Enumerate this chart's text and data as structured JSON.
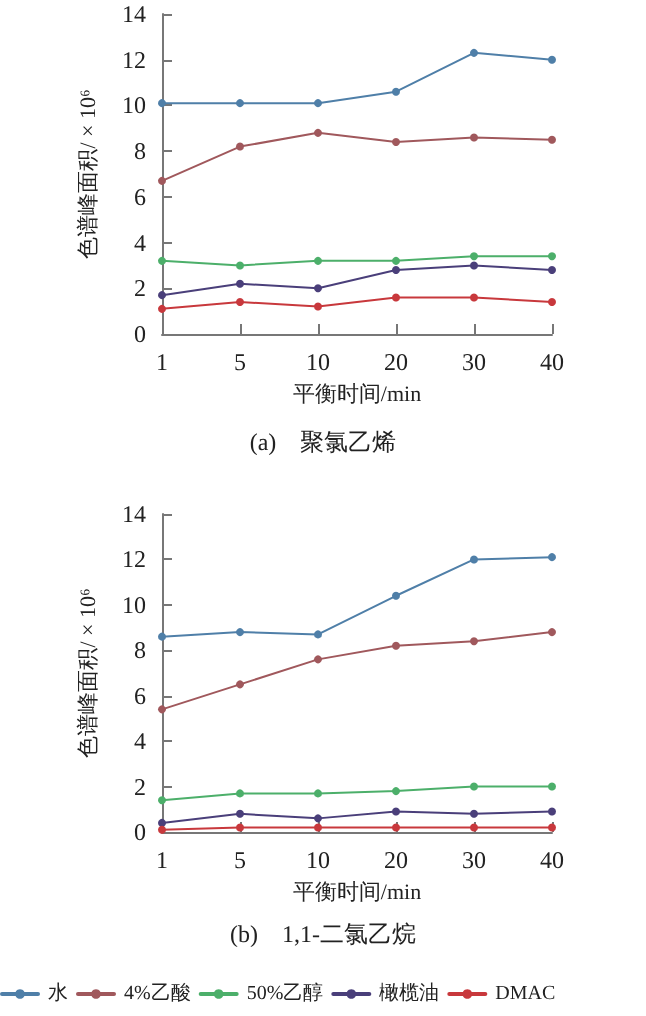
{
  "chart_data": [
    {
      "type": "line",
      "title": "(a)　聚氯乙烯",
      "xlabel": "平衡时间/min",
      "ylabel": "色谱峰面积/ × 10⁶",
      "categories": [
        "1",
        "5",
        "10",
        "20",
        "30",
        "40"
      ],
      "ylim": [
        0,
        14
      ],
      "yticks": [
        0,
        2,
        4,
        6,
        8,
        10,
        12,
        14
      ],
      "grid": false,
      "marker": "circle",
      "legend": false,
      "series": [
        {
          "color": "#4f7fa8",
          "values": [
            10.1,
            10.1,
            10.1,
            10.6,
            12.3,
            12.0
          ]
        },
        {
          "color": "#a0585c",
          "values": [
            6.7,
            8.2,
            8.8,
            8.4,
            8.6,
            8.5
          ]
        },
        {
          "color": "#4caf6a",
          "values": [
            3.2,
            3.0,
            3.2,
            3.2,
            3.4,
            3.4
          ]
        },
        {
          "color": "#4a3f7a",
          "values": [
            1.7,
            2.2,
            2.0,
            2.8,
            3.0,
            2.8
          ]
        },
        {
          "color": "#c8383c",
          "values": [
            1.1,
            1.4,
            1.2,
            1.6,
            1.6,
            1.4
          ]
        }
      ]
    },
    {
      "type": "line",
      "title": "(b)　1,1-二氯乙烷",
      "xlabel": "平衡时间/min",
      "ylabel": "色谱峰面积/ × 10⁶",
      "categories": [
        "1",
        "5",
        "10",
        "20",
        "30",
        "40"
      ],
      "ylim": [
        0,
        14
      ],
      "yticks": [
        0,
        2,
        4,
        6,
        8,
        10,
        12,
        14
      ],
      "grid": false,
      "marker": "circle",
      "legend": "bottom",
      "series": [
        {
          "name": "水",
          "color": "#4f7fa8",
          "values": [
            8.6,
            8.8,
            8.7,
            10.4,
            12.0,
            12.1
          ]
        },
        {
          "name": "4%乙酸",
          "color": "#a0585c",
          "values": [
            5.4,
            6.5,
            7.6,
            8.2,
            8.4,
            8.8
          ]
        },
        {
          "name": "50%乙醇",
          "color": "#4caf6a",
          "values": [
            1.4,
            1.7,
            1.7,
            1.8,
            2.0,
            2.0
          ]
        },
        {
          "name": "橄榄油",
          "color": "#4a3f7a",
          "values": [
            0.4,
            0.8,
            0.6,
            0.9,
            0.8,
            0.9
          ]
        },
        {
          "name": "DMAC",
          "color": "#c8383c",
          "values": [
            0.1,
            0.2,
            0.2,
            0.2,
            0.2,
            0.2
          ]
        }
      ]
    }
  ]
}
